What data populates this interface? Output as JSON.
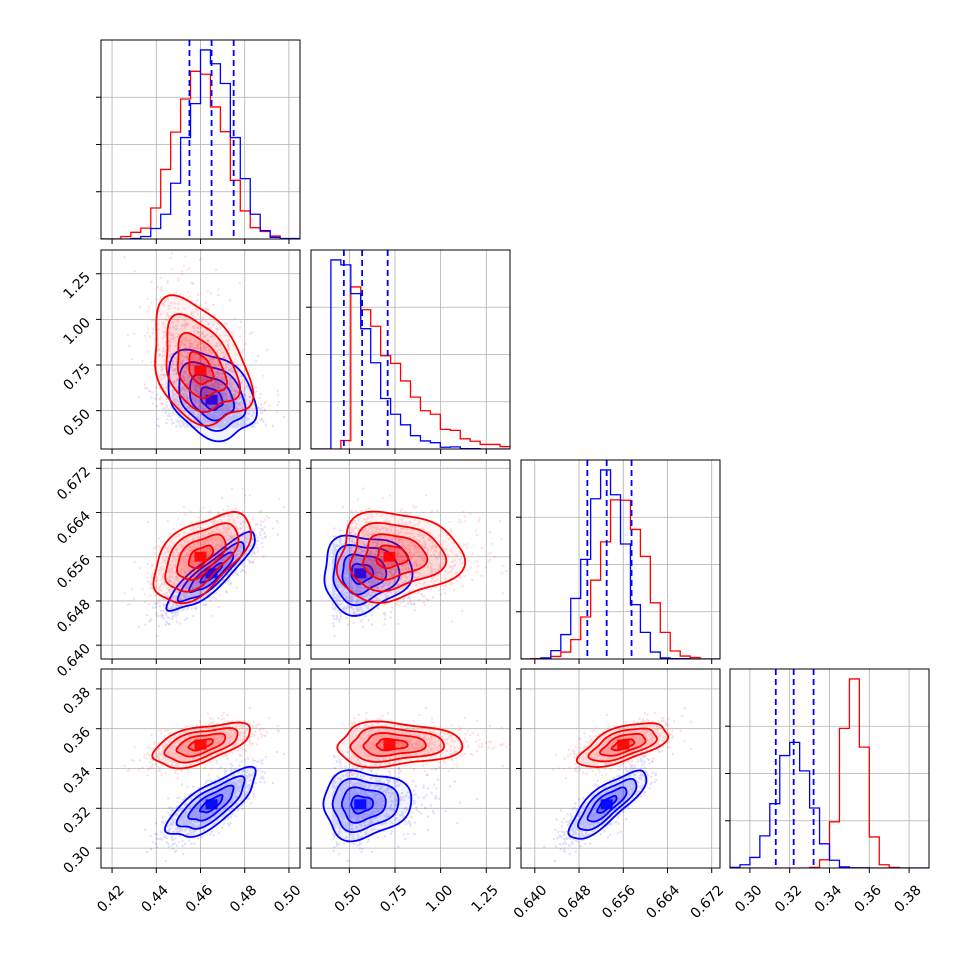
{
  "chart_data": {
    "type": "corner",
    "title": "",
    "parameters": [
      "",
      "",
      "",
      ""
    ],
    "colors": {
      "series_a": "#0000ff",
      "series_b": "#ff0000",
      "grid": "#b0b0b0",
      "axes": "#000000"
    },
    "grid": true,
    "legend": "none",
    "axes": [
      {
        "range": [
          0.415,
          0.505
        ],
        "ticks": [
          "0.42",
          "0.44",
          "0.46",
          "0.48",
          "0.50"
        ],
        "tick_values": [
          0.42,
          0.44,
          0.46,
          0.48,
          0.5
        ]
      },
      {
        "range": [
          0.29,
          1.38
        ],
        "ticks": [
          "0.50",
          "0.75",
          "1.00",
          "1.25"
        ],
        "tick_values": [
          0.5,
          0.75,
          1.0,
          1.25
        ]
      },
      {
        "range": [
          0.6375,
          0.6735
        ],
        "ticks": [
          "0.640",
          "0.648",
          "0.656",
          "0.664",
          "0.672"
        ],
        "tick_values": [
          0.64,
          0.648,
          0.656,
          0.664,
          0.672
        ]
      },
      {
        "range": [
          0.29,
          0.39
        ],
        "ticks": [
          "0.30",
          "0.32",
          "0.34",
          "0.36",
          "0.38"
        ],
        "tick_values": [
          0.3,
          0.32,
          0.34,
          0.36,
          0.38
        ]
      }
    ],
    "series": [
      {
        "name": "",
        "color": "#0000ff",
        "means": [
          0.465,
          0.56,
          0.653,
          0.322
        ],
        "sds": [
          0.01,
          0.12,
          0.0035,
          0.0085
        ],
        "corr": [
          [
            1,
            -0.3,
            0.88,
            0.75
          ],
          [
            -0.3,
            1,
            0.05,
            0.05
          ],
          [
            0.88,
            0.05,
            1,
            0.8
          ],
          [
            0.75,
            0.05,
            0.8,
            1
          ]
        ],
        "quantiles": [
          [
            0.455,
            0.465,
            0.475
          ],
          [
            0.47,
            0.57,
            0.71
          ],
          [
            0.6495,
            0.653,
            0.6575
          ],
          [
            0.313,
            0.322,
            0.332
          ]
        ]
      },
      {
        "name": "",
        "color": "#ff0000",
        "means": [
          0.46,
          0.72,
          0.656,
          0.352
        ],
        "sds": [
          0.011,
          0.17,
          0.004,
          0.0055
        ],
        "corr": [
          [
            1,
            -0.35,
            0.55,
            0.55
          ],
          [
            -0.35,
            1,
            0.05,
            0.05
          ],
          [
            0.55,
            0.05,
            1,
            0.6
          ],
          [
            0.55,
            0.05,
            0.6,
            1
          ]
        ]
      }
    ]
  }
}
